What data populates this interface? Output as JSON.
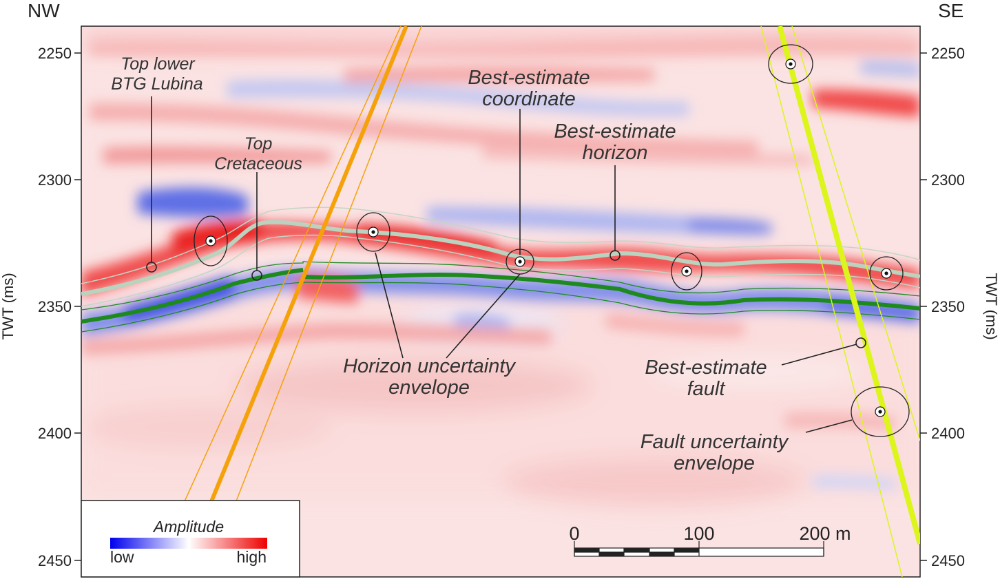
{
  "orientation": {
    "left": "NW",
    "right": "SE"
  },
  "axis": {
    "title_left": "TWT (ms)",
    "title_right": "TWT (ms)",
    "ticks": [
      "2250",
      "2300",
      "2350",
      "2400",
      "2450"
    ]
  },
  "annotations": {
    "top_lower_btg": [
      "Top lower",
      "BTG Lubina"
    ],
    "top_cretaceous": [
      "Top",
      "Cretaceous"
    ],
    "best_estimate_coordinate": [
      "Best-estimate",
      "coordinate"
    ],
    "best_estimate_horizon": [
      "Best-estimate",
      "horizon"
    ],
    "horizon_uncertainty_envelope": [
      "Horizon uncertainty",
      "envelope"
    ],
    "best_estimate_fault": [
      "Best-estimate",
      "fault"
    ],
    "fault_uncertainty_envelope": [
      "Fault uncertainty",
      "envelope"
    ]
  },
  "legend": {
    "title": "Amplitude",
    "low": "low",
    "high": "high",
    "colors": {
      "low": "#0000ee",
      "mid": "#ffffff",
      "high": "#ee0000"
    }
  },
  "scale_bar": {
    "labels": [
      "0",
      "100",
      "200 m"
    ]
  },
  "colors": {
    "horizon_top_btg": "#b7d4bd",
    "horizon_top_cretaceous": "#1e8a1e",
    "fault_nw": "#f5a20a",
    "fault_se": "#dcf51a",
    "positive_amplitude": "#f03030",
    "negative_amplitude": "#3b4fe0"
  }
}
